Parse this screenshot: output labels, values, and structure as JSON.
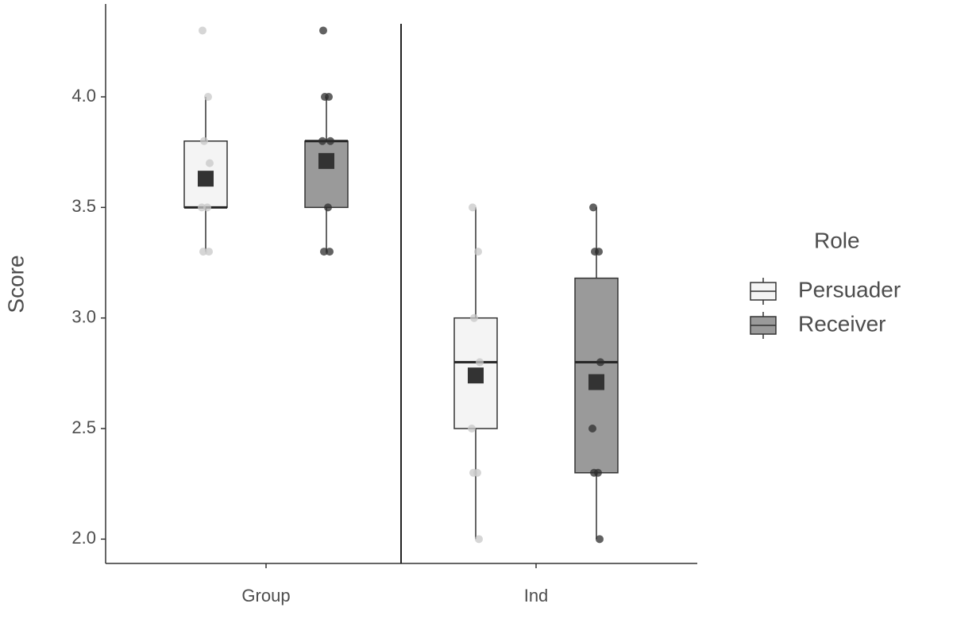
{
  "chart_data": {
    "type": "box",
    "y_label": "Score",
    "legend_title": "Role",
    "categories": [
      "Group",
      "Ind"
    ],
    "ylim": [
      1.89,
      4.42
    ],
    "yticks": [
      {
        "value": 2,
        "label": "2.0"
      },
      2.5,
      {
        "value": 3,
        "label": "3.0"
      },
      3.5,
      {
        "value": 4,
        "label": "4.0"
      }
    ],
    "mean_color": "#333333",
    "series": [
      {
        "name": "Persuader",
        "color": "#f4f4f4",
        "point_color": "#c8c8c8",
        "boxes": [
          {
            "min": 3.3,
            "q1": 3.5,
            "median": 3.5,
            "q3": 3.8,
            "max": 4.0,
            "mean": 3.63
          },
          {
            "min": 2.0,
            "q1": 2.5,
            "median": 2.8,
            "q3": 3.0,
            "max": 3.5,
            "mean": 2.74
          }
        ],
        "points": [
          [
            4.3,
            4.0,
            3.8,
            3.7,
            3.5,
            3.5,
            3.3,
            3.3
          ],
          [
            3.5,
            3.3,
            3.0,
            2.8,
            2.5,
            2.3,
            2.3,
            2.0
          ]
        ]
      },
      {
        "name": "Receiver",
        "color": "#9a9a9a",
        "point_color": "#2e2e2e",
        "boxes": [
          {
            "min": 3.3,
            "q1": 3.5,
            "median": 3.8,
            "q3": 3.8,
            "max": 4.0,
            "mean": 3.71
          },
          {
            "min": 2.0,
            "q1": 2.3,
            "median": 2.8,
            "q3": 3.18,
            "max": 3.5,
            "mean": 2.71
          }
        ],
        "points": [
          [
            4.3,
            4.0,
            4.0,
            3.8,
            3.8,
            3.5,
            3.3,
            3.3
          ],
          [
            3.5,
            3.3,
            3.3,
            2.8,
            2.5,
            2.3,
            2.3,
            2.0
          ]
        ]
      }
    ]
  }
}
